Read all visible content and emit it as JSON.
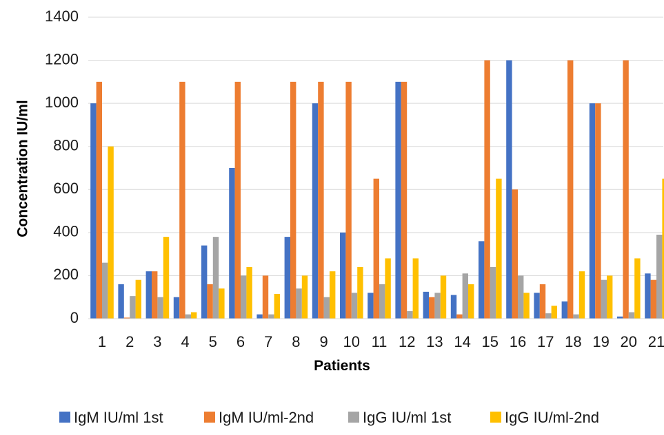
{
  "chart_data": {
    "type": "bar",
    "title": "",
    "xlabel": "Patients",
    "ylabel": "Concentration IU/ml",
    "ylim": [
      0,
      1400
    ],
    "yticks": [
      0,
      200,
      400,
      600,
      800,
      1000,
      1200,
      1400
    ],
    "grid": true,
    "legend_position": "bottom",
    "categories": [
      "1",
      "2",
      "3",
      "4",
      "5",
      "6",
      "7",
      "8",
      "9",
      "10",
      "11",
      "12",
      "13",
      "14",
      "15",
      "16",
      "17",
      "18",
      "19",
      "20",
      "21"
    ],
    "series": [
      {
        "name": "IgM IU/ml 1st",
        "color": "#4472C4",
        "values": [
          1000,
          160,
          220,
          100,
          340,
          700,
          20,
          380,
          1000,
          400,
          120,
          1100,
          125,
          110,
          360,
          1200,
          120,
          80,
          1000,
          10,
          210
        ]
      },
      {
        "name": "IgM IU/ml-2nd",
        "color": "#ED7D31",
        "values": [
          1100,
          5,
          220,
          1100,
          160,
          1100,
          200,
          1100,
          1100,
          1100,
          650,
          1100,
          100,
          20,
          1200,
          600,
          160,
          1200,
          1000,
          1200,
          180
        ]
      },
      {
        "name": "IgG IU/ml 1st",
        "color": "#A5A5A5",
        "values": [
          260,
          105,
          100,
          20,
          380,
          200,
          20,
          140,
          100,
          120,
          160,
          35,
          120,
          210,
          240,
          200,
          25,
          20,
          180,
          30,
          390
        ]
      },
      {
        "name": "IgG IU/ml-2nd",
        "color": "#FFC000",
        "values": [
          800,
          180,
          380,
          30,
          140,
          240,
          115,
          200,
          220,
          240,
          280,
          280,
          200,
          160,
          650,
          120,
          60,
          220,
          200,
          280,
          650
        ]
      }
    ]
  }
}
